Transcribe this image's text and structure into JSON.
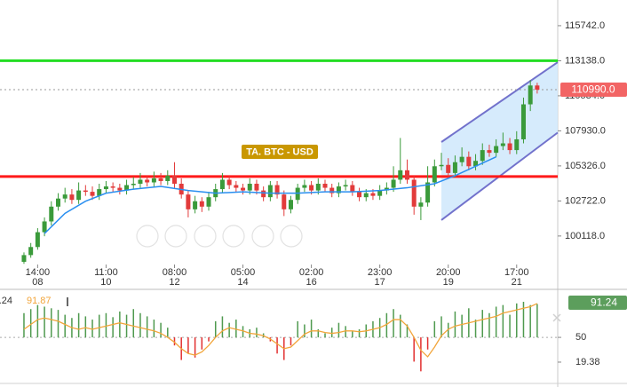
{
  "chart_data": [
    {
      "type": "candlestick",
      "annotation": "TA. BTC - USD",
      "up_color": "#3a9a3a",
      "down_color": "#e23b3b",
      "xlim": [
        -3.5,
        78
      ],
      "xticks": [
        {
          "value": 2,
          "label": "14:00"
        },
        {
          "value": 12,
          "label": "11:00"
        },
        {
          "value": 22,
          "label": "08:00"
        },
        {
          "value": 32,
          "label": "05:00"
        },
        {
          "value": 42,
          "label": "02:00"
        },
        {
          "value": 52,
          "label": "23:00"
        },
        {
          "value": 62,
          "label": "20:00"
        },
        {
          "value": 72,
          "label": "17:00"
        }
      ],
      "xtick_days": [
        "08",
        "10",
        "12",
        "14",
        "16",
        "17",
        "19",
        "21"
      ],
      "ylim": [
        98000,
        117650
      ],
      "yticks": [
        {
          "value": 100118,
          "label": "100118.0"
        },
        {
          "value": 102722,
          "label": "102722.0"
        },
        {
          "value": 105326,
          "label": "105326.0"
        },
        {
          "value": 107930,
          "label": "107930.0"
        },
        {
          "value": 110534,
          "label": "110534.0"
        },
        {
          "value": 113138,
          "label": "113138.0"
        },
        {
          "value": 115742,
          "label": "115742.0"
        }
      ],
      "grid": false,
      "current_price": 110990,
      "current_price_label": "110990.0",
      "current_price_color": "#f26464",
      "levels": [
        {
          "value": 113138,
          "color": "#22dd22"
        },
        {
          "value": 104540,
          "color": "#ff1a1a"
        }
      ],
      "channel": {
        "x": [
          61,
          78
        ],
        "upper": [
          107100,
          113030
        ],
        "lower": [
          101300,
          107800
        ],
        "fill": "#cfe7fb",
        "stroke": "#7272cc"
      },
      "ma": {
        "color": "#2a8ff0",
        "x": [
          3,
          6,
          9,
          12,
          16,
          20,
          24,
          28,
          32,
          36,
          40,
          44,
          48,
          52,
          56,
          60,
          63,
          66,
          69
        ],
        "values": [
          100300,
          101800,
          102700,
          103300,
          103600,
          103800,
          103500,
          103300,
          103400,
          103300,
          103300,
          103400,
          103400,
          103500,
          103700,
          104000,
          104600,
          105300,
          106000
        ]
      },
      "open": [
        98200,
        98700,
        99300,
        100400,
        101200,
        102300,
        102900,
        103200,
        102800,
        103500,
        103400,
        103100,
        103600,
        103800,
        103700,
        103500,
        103900,
        104000,
        104300,
        104100,
        104400,
        104200,
        104600,
        104000,
        103200,
        102100,
        102700,
        102300,
        103000,
        103600,
        104300,
        103900,
        103700,
        103500,
        104000,
        103500,
        103000,
        103900,
        103200,
        102100,
        102800,
        103700,
        103900,
        103500,
        104000,
        103700,
        103300,
        103800,
        103900,
        103400,
        103000,
        103300,
        103100,
        103500,
        103700,
        104300,
        105000,
        104300,
        102300,
        102600,
        104100,
        105300,
        105400,
        104800,
        105600,
        106000,
        105300,
        105700,
        106500,
        106300,
        106800,
        107000,
        106500,
        107300,
        109900,
        111300
      ],
      "high": [
        98900,
        99600,
        100700,
        101500,
        102700,
        103300,
        103700,
        103600,
        104100,
        103900,
        103800,
        104000,
        104200,
        104100,
        104000,
        104300,
        104500,
        104800,
        104600,
        104900,
        104800,
        105000,
        105600,
        104400,
        103500,
        103100,
        103000,
        103400,
        104000,
        104800,
        104600,
        104200,
        104000,
        104400,
        104300,
        103800,
        104200,
        104200,
        103500,
        103100,
        104000,
        104300,
        104200,
        104400,
        104300,
        104000,
        104100,
        104300,
        104200,
        103700,
        103600,
        103600,
        103900,
        104100,
        105300,
        107400,
        105800,
        104600,
        103000,
        105300,
        105800,
        106300,
        105900,
        106100,
        106700,
        106400,
        106200,
        107000,
        106900,
        107300,
        107800,
        107400,
        107900,
        110400,
        111700,
        111500
      ],
      "low": [
        98050,
        98500,
        99100,
        100100,
        100900,
        102000,
        102600,
        102500,
        102500,
        103100,
        102800,
        102800,
        103300,
        103400,
        103200,
        103200,
        103600,
        103700,
        103800,
        103800,
        103900,
        103900,
        103700,
        102900,
        101500,
        101800,
        101900,
        102000,
        102700,
        103300,
        103600,
        103400,
        103200,
        103200,
        103200,
        102700,
        102700,
        102900,
        101600,
        101800,
        102500,
        103400,
        103200,
        103200,
        103400,
        103000,
        103000,
        103500,
        103100,
        102700,
        102700,
        102800,
        102800,
        103200,
        103400,
        104000,
        104000,
        101700,
        101300,
        102300,
        103800,
        105000,
        104500,
        104500,
        105300,
        105000,
        105000,
        105400,
        106000,
        106000,
        106500,
        106200,
        106200,
        107000,
        109400,
        110700
      ],
      "close": [
        98700,
        99300,
        100400,
        101200,
        102300,
        102900,
        103200,
        102800,
        103500,
        103400,
        103100,
        103600,
        103800,
        103700,
        103500,
        103900,
        104000,
        104300,
        104100,
        104400,
        104200,
        104600,
        104000,
        103200,
        102100,
        102700,
        102300,
        103000,
        103600,
        104300,
        103900,
        103700,
        103500,
        104000,
        103500,
        103000,
        103900,
        103200,
        102100,
        102800,
        103700,
        103900,
        103500,
        104000,
        103700,
        103300,
        103800,
        103900,
        103400,
        103000,
        103300,
        103100,
        103500,
        103700,
        104300,
        105000,
        104300,
        102300,
        102600,
        104100,
        105300,
        105400,
        104800,
        105600,
        106000,
        105300,
        105700,
        106500,
        106300,
        106800,
        107000,
        106500,
        107300,
        109900,
        111300,
        110990
      ]
    },
    {
      "type": "oscillator",
      "ylim": [
        -7,
        105
      ],
      "yticks": [
        19.38,
        50
      ],
      "baseline": 50,
      "series": [
        {
          "up_color": "#4f9a4f",
          "down_color": "#e23030",
          "values": [
            80,
            85,
            90,
            88,
            86,
            84,
            78,
            74,
            80,
            76,
            72,
            78,
            80,
            75,
            82,
            78,
            85,
            80,
            76,
            72,
            68,
            62,
            40,
            22,
            30,
            25,
            35,
            45,
            70,
            76,
            68,
            72,
            64,
            60,
            62,
            55,
            45,
            30,
            22,
            40,
            70,
            66,
            72,
            60,
            55,
            62,
            68,
            64,
            58,
            60,
            66,
            70,
            74,
            80,
            85,
            78,
            66,
            20,
            8,
            35,
            70,
            76,
            68,
            82,
            78,
            86,
            72,
            84,
            80,
            88,
            90,
            78,
            92,
            94,
            90,
            91.24
          ]
        },
        {
          "color": "#f2a53a",
          "values": [
            60,
            66,
            72,
            74,
            72,
            70,
            66,
            62,
            60,
            62,
            60,
            62,
            64,
            66,
            68,
            66,
            64,
            62,
            60,
            58,
            55,
            50,
            44,
            36,
            30,
            28,
            32,
            40,
            50,
            58,
            62,
            60,
            58,
            55,
            54,
            52,
            48,
            42,
            36,
            38,
            46,
            54,
            58,
            58,
            56,
            55,
            56,
            58,
            58,
            57,
            58,
            60,
            62,
            66,
            72,
            72,
            64,
            50,
            34,
            26,
            38,
            52,
            60,
            64,
            66,
            68,
            70,
            72,
            74,
            76,
            80,
            82,
            84,
            86,
            88,
            91.87
          ]
        }
      ],
      "readout_box_color": "#5c9e5c"
    }
  ]
}
